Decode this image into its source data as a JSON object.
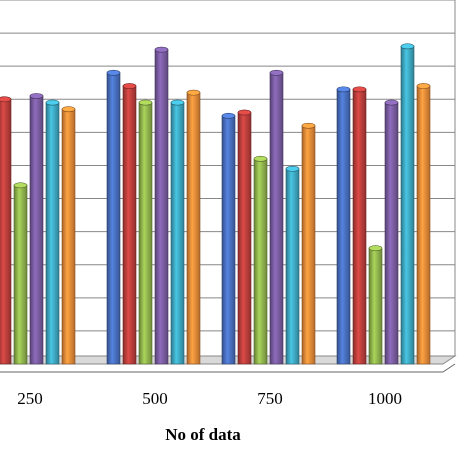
{
  "chart_data": {
    "type": "bar",
    "categories": [
      "250",
      "500",
      "750",
      "1000"
    ],
    "xlabel": "No of data",
    "ylabel": "",
    "ylim": [
      0,
      11
    ],
    "grid": true,
    "legend": "none",
    "series": [
      {
        "color": "#4a72c4",
        "values": [
          null,
          8.8,
          7.5,
          8.3
        ]
      },
      {
        "color": "#c0403d",
        "values": [
          8.0,
          8.4,
          7.6,
          8.3
        ]
      },
      {
        "color": "#94b84f",
        "values": [
          5.4,
          7.9,
          6.2,
          3.5
        ]
      },
      {
        "color": "#7c5ea4",
        "values": [
          8.1,
          9.5,
          8.8,
          7.9
        ]
      },
      {
        "color": "#3facc6",
        "values": [
          7.9,
          7.9,
          5.9,
          9.6
        ]
      },
      {
        "color": "#f08e39",
        "values": [
          7.7,
          8.2,
          7.2,
          8.4
        ]
      }
    ]
  }
}
